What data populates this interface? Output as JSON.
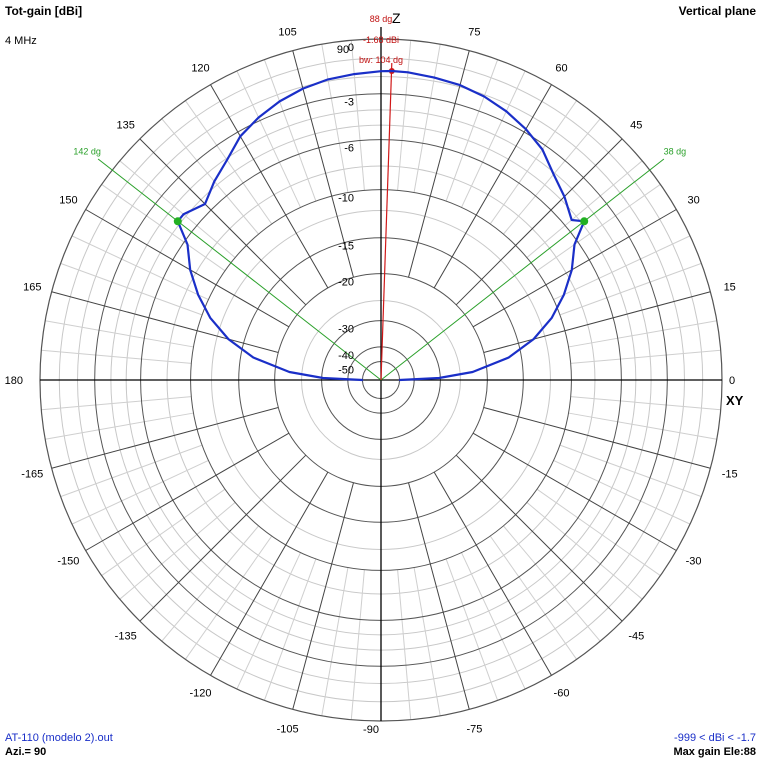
{
  "header": {
    "title": "Tot-gain [dBi]",
    "frequency": "4 MHz",
    "plane": "Vertical plane"
  },
  "footer": {
    "file": "AT-110 (modelo 2).out",
    "azimuth": "Azi.= 90",
    "range": "-999 < dBi < -1.7",
    "max_gain": "Max gain Ele:88"
  },
  "axes_labels": {
    "z": "Z",
    "xy": "XY"
  },
  "chart_data": {
    "type": "polar-line",
    "title": "Tot-gain [dBi]",
    "angle_unit": "degrees",
    "angle_ticks": [
      0,
      15,
      30,
      45,
      60,
      75,
      90,
      105,
      120,
      135,
      150,
      165,
      180,
      -165,
      -150,
      -135,
      -120,
      -105,
      -90,
      -75,
      -60,
      -45,
      -30,
      -15
    ],
    "radial_ticks_dBi": [
      0,
      -3,
      -6,
      -10,
      -15,
      -20,
      -30,
      -40,
      -50
    ],
    "radial_scale": "ARRL log (0.89 per 2 dB)",
    "grid": true,
    "max_gain": {
      "elevation_deg": 88,
      "gain_dBi": -1.68,
      "labels": [
        "88 dg",
        "-1.68 dBi",
        "bw: 104 dg"
      ]
    },
    "beamwidth_markers": [
      {
        "angle_deg": 38,
        "label": "38 dg"
      },
      {
        "angle_deg": 142,
        "label": "142 dg"
      }
    ],
    "series": [
      {
        "color": "#1a2fc8",
        "angles_deg": [
          0,
          2,
          5,
          10,
          15,
          20,
          25,
          30,
          35,
          38,
          40,
          45,
          50,
          55,
          60,
          65,
          70,
          75,
          80,
          85,
          88,
          90,
          95,
          100,
          105,
          110,
          115,
          120,
          125,
          130,
          135,
          140,
          142,
          145,
          150,
          155,
          160,
          165,
          170,
          175,
          178,
          180
        ],
        "gain_dBi": [
          -50,
          -30.4,
          -22.5,
          -16.6,
          -13.2,
          -10.8,
          -9.0,
          -7.5,
          -6.3,
          -4.8,
          -5.4,
          -4.7,
          -4.1,
          -3.3,
          -2.8,
          -2.4,
          -2.1,
          -1.9,
          -1.8,
          -1.7,
          -1.68,
          -1.7,
          -1.8,
          -1.9,
          -2.1,
          -2.4,
          -2.8,
          -3.3,
          -4.1,
          -4.7,
          -5.4,
          -4.8,
          -4.8,
          -6.3,
          -7.5,
          -9.0,
          -10.8,
          -13.2,
          -16.6,
          -22.5,
          -30.4,
          -50
        ]
      }
    ]
  }
}
